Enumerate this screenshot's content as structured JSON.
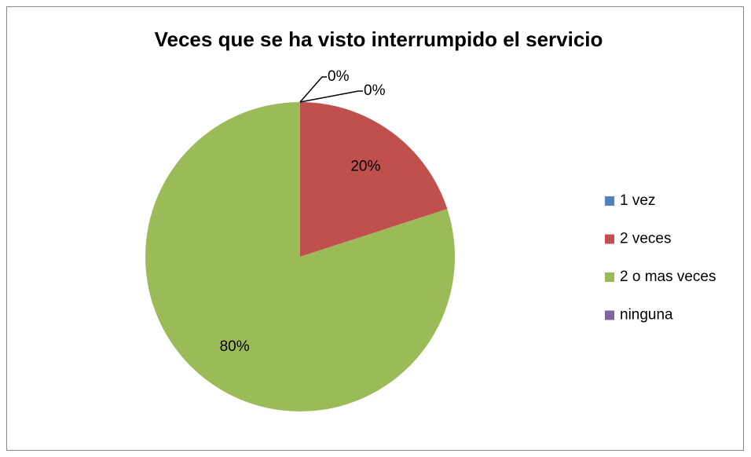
{
  "chart_data": {
    "type": "pie",
    "title": "Veces que se ha visto interrumpido el servicio",
    "categories": [
      "1 vez",
      "2 veces",
      "2 o mas veces",
      "ninguna"
    ],
    "values": [
      0,
      20,
      80,
      0
    ],
    "value_labels": [
      "0%",
      "20%",
      "80%",
      "0%"
    ],
    "colors": [
      "#4f81bd",
      "#c0504d",
      "#9bbb59",
      "#8064a2"
    ],
    "legend": "right"
  }
}
